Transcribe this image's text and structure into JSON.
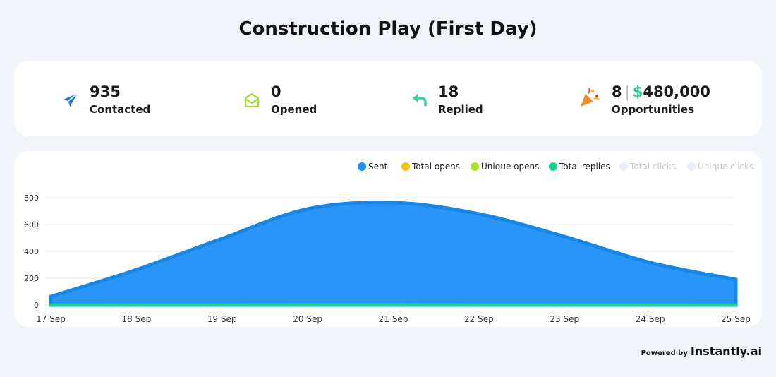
{
  "header": {
    "title": "Construction Play (First Day)"
  },
  "stats": [
    {
      "value": "935",
      "label": "Contacted"
    },
    {
      "value": "0",
      "label": "Opened"
    },
    {
      "value": "18",
      "label": "Replied"
    },
    {
      "value": "8",
      "separator": "|",
      "currency": "$",
      "amount": "480,000",
      "label": "Opportunities"
    }
  ],
  "chart_data": {
    "type": "area",
    "categories": [
      "17 Sep",
      "18 Sep",
      "19 Sep",
      "20 Sep",
      "21 Sep",
      "22 Sep",
      "23 Sep",
      "24 Sep",
      "25 Sep"
    ],
    "series": [
      {
        "name": "Sent",
        "color": "#1e90f7",
        "values": [
          63,
          263,
          495,
          716,
          763,
          679,
          510,
          316,
          190
        ]
      },
      {
        "name": "Total opens",
        "color": "#f2c10f",
        "values": [
          0,
          0,
          0,
          0,
          0,
          0,
          0,
          0,
          0
        ]
      },
      {
        "name": "Unique opens",
        "color": "#a6e22e",
        "values": [
          0,
          0,
          0,
          0,
          0,
          0,
          0,
          0,
          0
        ]
      },
      {
        "name": "Total replies",
        "color": "#12d68b",
        "values": [
          1,
          2,
          2,
          3,
          3,
          2,
          2,
          2,
          1
        ]
      },
      {
        "name": "Total clicks",
        "color": "#e9eef5",
        "hidden": true,
        "values": [
          0,
          0,
          0,
          0,
          0,
          0,
          0,
          0,
          0
        ]
      },
      {
        "name": "Unique clicks",
        "color": "#e9eef5",
        "hidden": true,
        "values": [
          0,
          0,
          0,
          0,
          0,
          0,
          0,
          0,
          0
        ]
      }
    ],
    "ylim": [
      0,
      800
    ],
    "yticks": [
      0,
      200,
      400,
      600,
      800
    ],
    "grid": true,
    "legend": "top-right"
  },
  "footer": {
    "powered_by": "Powered by",
    "brand": "Instantly.ai"
  }
}
